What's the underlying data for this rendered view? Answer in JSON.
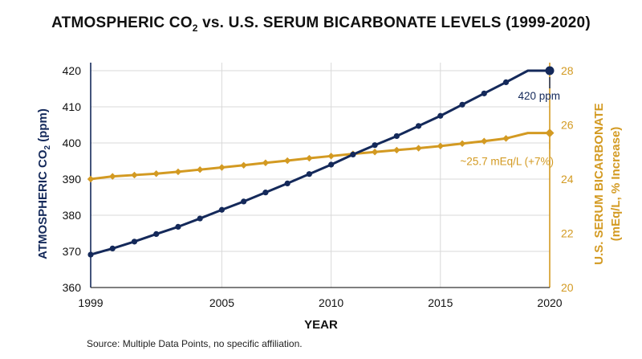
{
  "header": {
    "title_pre": "ATMOSPHERIC CO",
    "title_sub": "2",
    "title_post": " vs. U.S. SERUM BICARBONATE LEVELS (1999-2020)"
  },
  "source": "Source: Multiple Data Points, no specific affiliation.",
  "colors": {
    "co2": "#14295a",
    "bicarb": "#d39a22",
    "grid": "#d9d9d9",
    "text": "#111111"
  },
  "chart_data": {
    "type": "line",
    "title": "ATMOSPHERIC CO2 vs. U.S. SERUM BICARBONATE LEVELS (1999-2020)",
    "xlabel": "YEAR",
    "ylabel_left": {
      "pre": "ATMOSPHERIC CO",
      "sub": "2",
      "post": " (ppm)"
    },
    "ylabel_right": {
      "line1": "U.S. SERUM BICARBONATE",
      "line2": "(mEq/L, % Increase)"
    },
    "xlim": [
      1999,
      2020
    ],
    "ylim_left": [
      360,
      420
    ],
    "ylim_right": [
      20,
      28
    ],
    "x_ticks": [
      1999,
      2005,
      2010,
      2015,
      2020
    ],
    "y_ticks_left": [
      360,
      370,
      380,
      390,
      400,
      410,
      420
    ],
    "y_ticks_right": [
      20,
      22,
      24,
      26,
      28
    ],
    "grid": true,
    "x": [
      1999,
      2000,
      2001,
      2002,
      2003,
      2004,
      2005,
      2006,
      2007,
      2008,
      2009,
      2010,
      2011,
      2012,
      2013,
      2014,
      2015,
      2016,
      2017,
      2018,
      2019,
      2020
    ],
    "series": [
      {
        "axis": "left",
        "marker": "circle",
        "values": [
          369.1,
          370.8,
          372.7,
          374.8,
          376.8,
          379.1,
          381.5,
          383.8,
          386.3,
          388.8,
          391.4,
          394.0,
          396.8,
          399.4,
          401.9,
          404.7,
          407.5,
          410.6,
          413.7,
          416.8,
          420.0,
          420.0
        ]
      },
      {
        "axis": "right",
        "marker": "diamond",
        "values": [
          24.0,
          24.1,
          24.15,
          24.2,
          24.27,
          24.35,
          24.43,
          24.51,
          24.6,
          24.68,
          24.77,
          24.85,
          24.93,
          25.0,
          25.07,
          25.14,
          25.22,
          25.31,
          25.4,
          25.5,
          25.7,
          25.7
        ]
      }
    ],
    "annotations": [
      {
        "series": 0,
        "year": 2020,
        "text": "420 ppm"
      },
      {
        "series": 1,
        "year": 2020,
        "text": "~25.7 mEq/L (+7%)"
      }
    ]
  }
}
